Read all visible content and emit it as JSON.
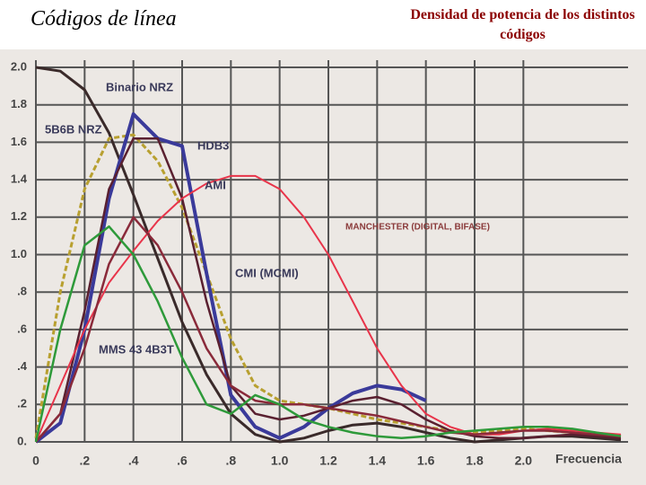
{
  "title": "Códigos de línea",
  "subtitle": "Densidad de potencia de los distintos códigos",
  "chart_data": {
    "type": "line",
    "x_label": "Frecuencia",
    "x": [
      0,
      0.1,
      0.2,
      0.3,
      0.4,
      0.5,
      0.6,
      0.7,
      0.8,
      0.9,
      1.0,
      1.1,
      1.2,
      1.3,
      1.4,
      1.5,
      1.6,
      1.7,
      1.8,
      1.9,
      2.0,
      2.1,
      2.2,
      2.3,
      2.4
    ],
    "xlim": [
      0,
      2.4
    ],
    "ylim": [
      0,
      2
    ],
    "xticks": [
      0,
      {
        "value": 0.2,
        "label": ".2"
      },
      {
        "value": 0.4,
        "label": ".4"
      },
      {
        "value": 0.6,
        "label": ".6"
      },
      {
        "value": 0.8,
        "label": ".8"
      },
      {
        "value": 1,
        "label": "1.0"
      },
      1.2,
      1.4,
      1.6,
      1.8,
      {
        "value": 2,
        "label": "2.0"
      }
    ],
    "yticks": [
      {
        "value": 0,
        "label": "0."
      },
      {
        "value": 0.2,
        "label": ".2"
      },
      {
        "value": 0.4,
        "label": ".4"
      },
      {
        "value": 0.6,
        "label": ".6"
      },
      {
        "value": 0.8,
        "label": ".8"
      },
      {
        "value": 1,
        "label": "1.0"
      },
      1.2,
      1.4,
      1.6,
      1.8,
      {
        "value": 2,
        "label": "2.0"
      }
    ],
    "grid": true,
    "series": [
      {
        "name": "Binario NRZ",
        "color": "#3a2a2a",
        "values": [
          2.0,
          1.98,
          1.88,
          1.65,
          1.32,
          0.98,
          0.64,
          0.36,
          0.15,
          0.04,
          0.0,
          0.02,
          0.06,
          0.09,
          0.1,
          0.08,
          0.05,
          0.02,
          0.0,
          0.01,
          0.02,
          0.03,
          0.03,
          0.02,
          0.01
        ]
      },
      {
        "name": "5B6B NRZ",
        "color": "#b8a030",
        "values": [
          0.02,
          0.8,
          1.35,
          1.62,
          1.64,
          1.5,
          1.25,
          0.9,
          0.55,
          0.3,
          0.22,
          0.2,
          0.18,
          0.15,
          0.12,
          0.1,
          0.08,
          0.06,
          0.05,
          0.06,
          0.07,
          0.06,
          0.05,
          0.04,
          0.03
        ]
      },
      {
        "name": "HDB3",
        "color": "#3a3a9a",
        "values": [
          0.0,
          0.1,
          0.6,
          1.3,
          1.75,
          1.62,
          1.58,
          0.9,
          0.25,
          0.08,
          0.02,
          0.08,
          0.18,
          0.26,
          0.3,
          0.28,
          0.22,
          null,
          null,
          null,
          null,
          null,
          null,
          null,
          null
        ]
      },
      {
        "name": "AMI",
        "color": "#5a2030",
        "values": [
          0.0,
          0.15,
          0.7,
          1.35,
          1.62,
          1.62,
          1.3,
          0.75,
          0.3,
          0.15,
          0.12,
          0.14,
          0.18,
          0.22,
          0.24,
          0.2,
          0.12,
          0.06,
          0.03,
          0.02,
          0.02,
          0.03,
          0.04,
          0.03,
          0.02
        ]
      },
      {
        "name": "MANCHESTER (DIGITAL, BIFASE)",
        "color": "#e8344a",
        "values": [
          0.0,
          0.3,
          0.6,
          0.85,
          1.02,
          1.18,
          1.3,
          1.38,
          1.42,
          1.42,
          1.35,
          1.2,
          1.0,
          0.75,
          0.5,
          0.3,
          0.15,
          0.08,
          0.04,
          0.04,
          0.06,
          0.07,
          0.06,
          0.05,
          0.04
        ]
      },
      {
        "name": "CMI (MCMI)",
        "color": "#8a2a3a",
        "values": [
          0.0,
          0.15,
          0.5,
          0.95,
          1.2,
          1.05,
          0.8,
          0.5,
          0.3,
          0.22,
          0.2,
          0.2,
          0.18,
          0.16,
          0.14,
          0.11,
          0.08,
          0.05,
          0.04,
          0.05,
          0.06,
          0.06,
          0.05,
          0.04,
          0.03
        ]
      },
      {
        "name": "MMS 43 4B3T",
        "color": "#2e9a3a",
        "values": [
          0.0,
          0.6,
          1.05,
          1.15,
          1.0,
          0.75,
          0.45,
          0.2,
          0.15,
          0.25,
          0.2,
          0.12,
          0.08,
          0.05,
          0.03,
          0.02,
          0.03,
          0.05,
          0.06,
          0.07,
          0.08,
          0.08,
          0.07,
          0.05,
          0.03
        ]
      }
    ]
  }
}
